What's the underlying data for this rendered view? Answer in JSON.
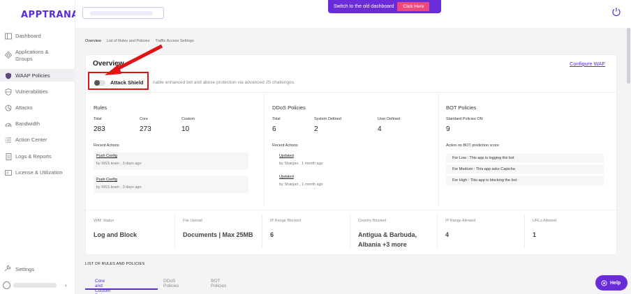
{
  "sidebar": {
    "logo": "APPTRANA",
    "items": [
      {
        "label": "Dashboard",
        "icon": "dashboard-icon"
      },
      {
        "label": "Applications & Groups",
        "icon": "applications-icon"
      },
      {
        "label": "WAAP Policies",
        "icon": "shield-icon"
      },
      {
        "label": "Vulnerabilities",
        "icon": "vulnerabilities-icon"
      },
      {
        "label": "Attacks",
        "icon": "attacks-icon"
      },
      {
        "label": "Bandwidth",
        "icon": "bandwidth-icon"
      },
      {
        "label": "Action Center",
        "icon": "action-center-icon"
      },
      {
        "label": "Logs & Reports",
        "icon": "logs-icon"
      },
      {
        "label": "License & Utilization",
        "icon": "license-icon"
      }
    ],
    "settings": "Settings"
  },
  "topbar": {
    "banner_text": "Switch to the old dashboard",
    "banner_button": "Click Here"
  },
  "breadcrumbs": [
    "Overview",
    "List of Rules and Policies",
    "Traffic Access Settings"
  ],
  "overview": {
    "title": "Overview",
    "configure_link": "Configure WAF",
    "attack_shield": {
      "label": "Attack Shield",
      "description": "nable enhanced bot and abuse protection via advanced JS challenges.",
      "enabled": false
    },
    "rules": {
      "title": "Rules",
      "columns": [
        {
          "label": "Total",
          "value": "283"
        },
        {
          "label": "Core",
          "value": "273"
        },
        {
          "label": "Custom",
          "value": "10"
        }
      ],
      "recent_label": "Recent Actions",
      "recent": [
        {
          "title": "Push Config",
          "sub": "by MSS team , 3 days ago"
        },
        {
          "title": "Push Config",
          "sub": "by MSS team , 3 days ago"
        }
      ]
    },
    "ddos": {
      "title": "DDoS Policies",
      "columns": [
        {
          "label": "Total",
          "value": "6"
        },
        {
          "label": "System Defined",
          "value": "2"
        },
        {
          "label": "User Defined",
          "value": "4"
        }
      ],
      "recent_label": "Recent Actions",
      "recent": [
        {
          "title": "Updated",
          "sub": "by Shanjan , 1 month ago"
        },
        {
          "title": "Updated",
          "sub": "by Shanjan , 1 month ago"
        }
      ]
    },
    "bot": {
      "title": "BOT Policies",
      "standard_label": "Standard Policies ON",
      "standard_value": "9",
      "score_label": "Action on BOT prediction score",
      "rows": [
        "For Low : This app is logging the bot",
        "For Medium : This app asks Captcha",
        "For High : This app is blocking the bot"
      ]
    },
    "stats": [
      {
        "label": "WAF Status",
        "value": "Log and Block"
      },
      {
        "label": "File Upload",
        "value": "Documents | Max 25MB"
      },
      {
        "label": "IP Range Blocked",
        "value": "6"
      },
      {
        "label": "Country Blocked",
        "value": "Antigua & Barbuda, Albania +3 more"
      },
      {
        "label": "IP Range Allowed",
        "value": "4"
      },
      {
        "label": "URLs Allowed",
        "value": "1"
      }
    ]
  },
  "list_section": {
    "title": "LIST OF RULES AND POLICIES",
    "tabs": [
      "Core and Custom Rules",
      "DDoS Policies",
      "BOT Policies"
    ]
  },
  "help_label": "Help",
  "colors": {
    "brand": "#5b2bd6",
    "accent_pink": "#f0487a",
    "highlight_red": "#e01414"
  }
}
